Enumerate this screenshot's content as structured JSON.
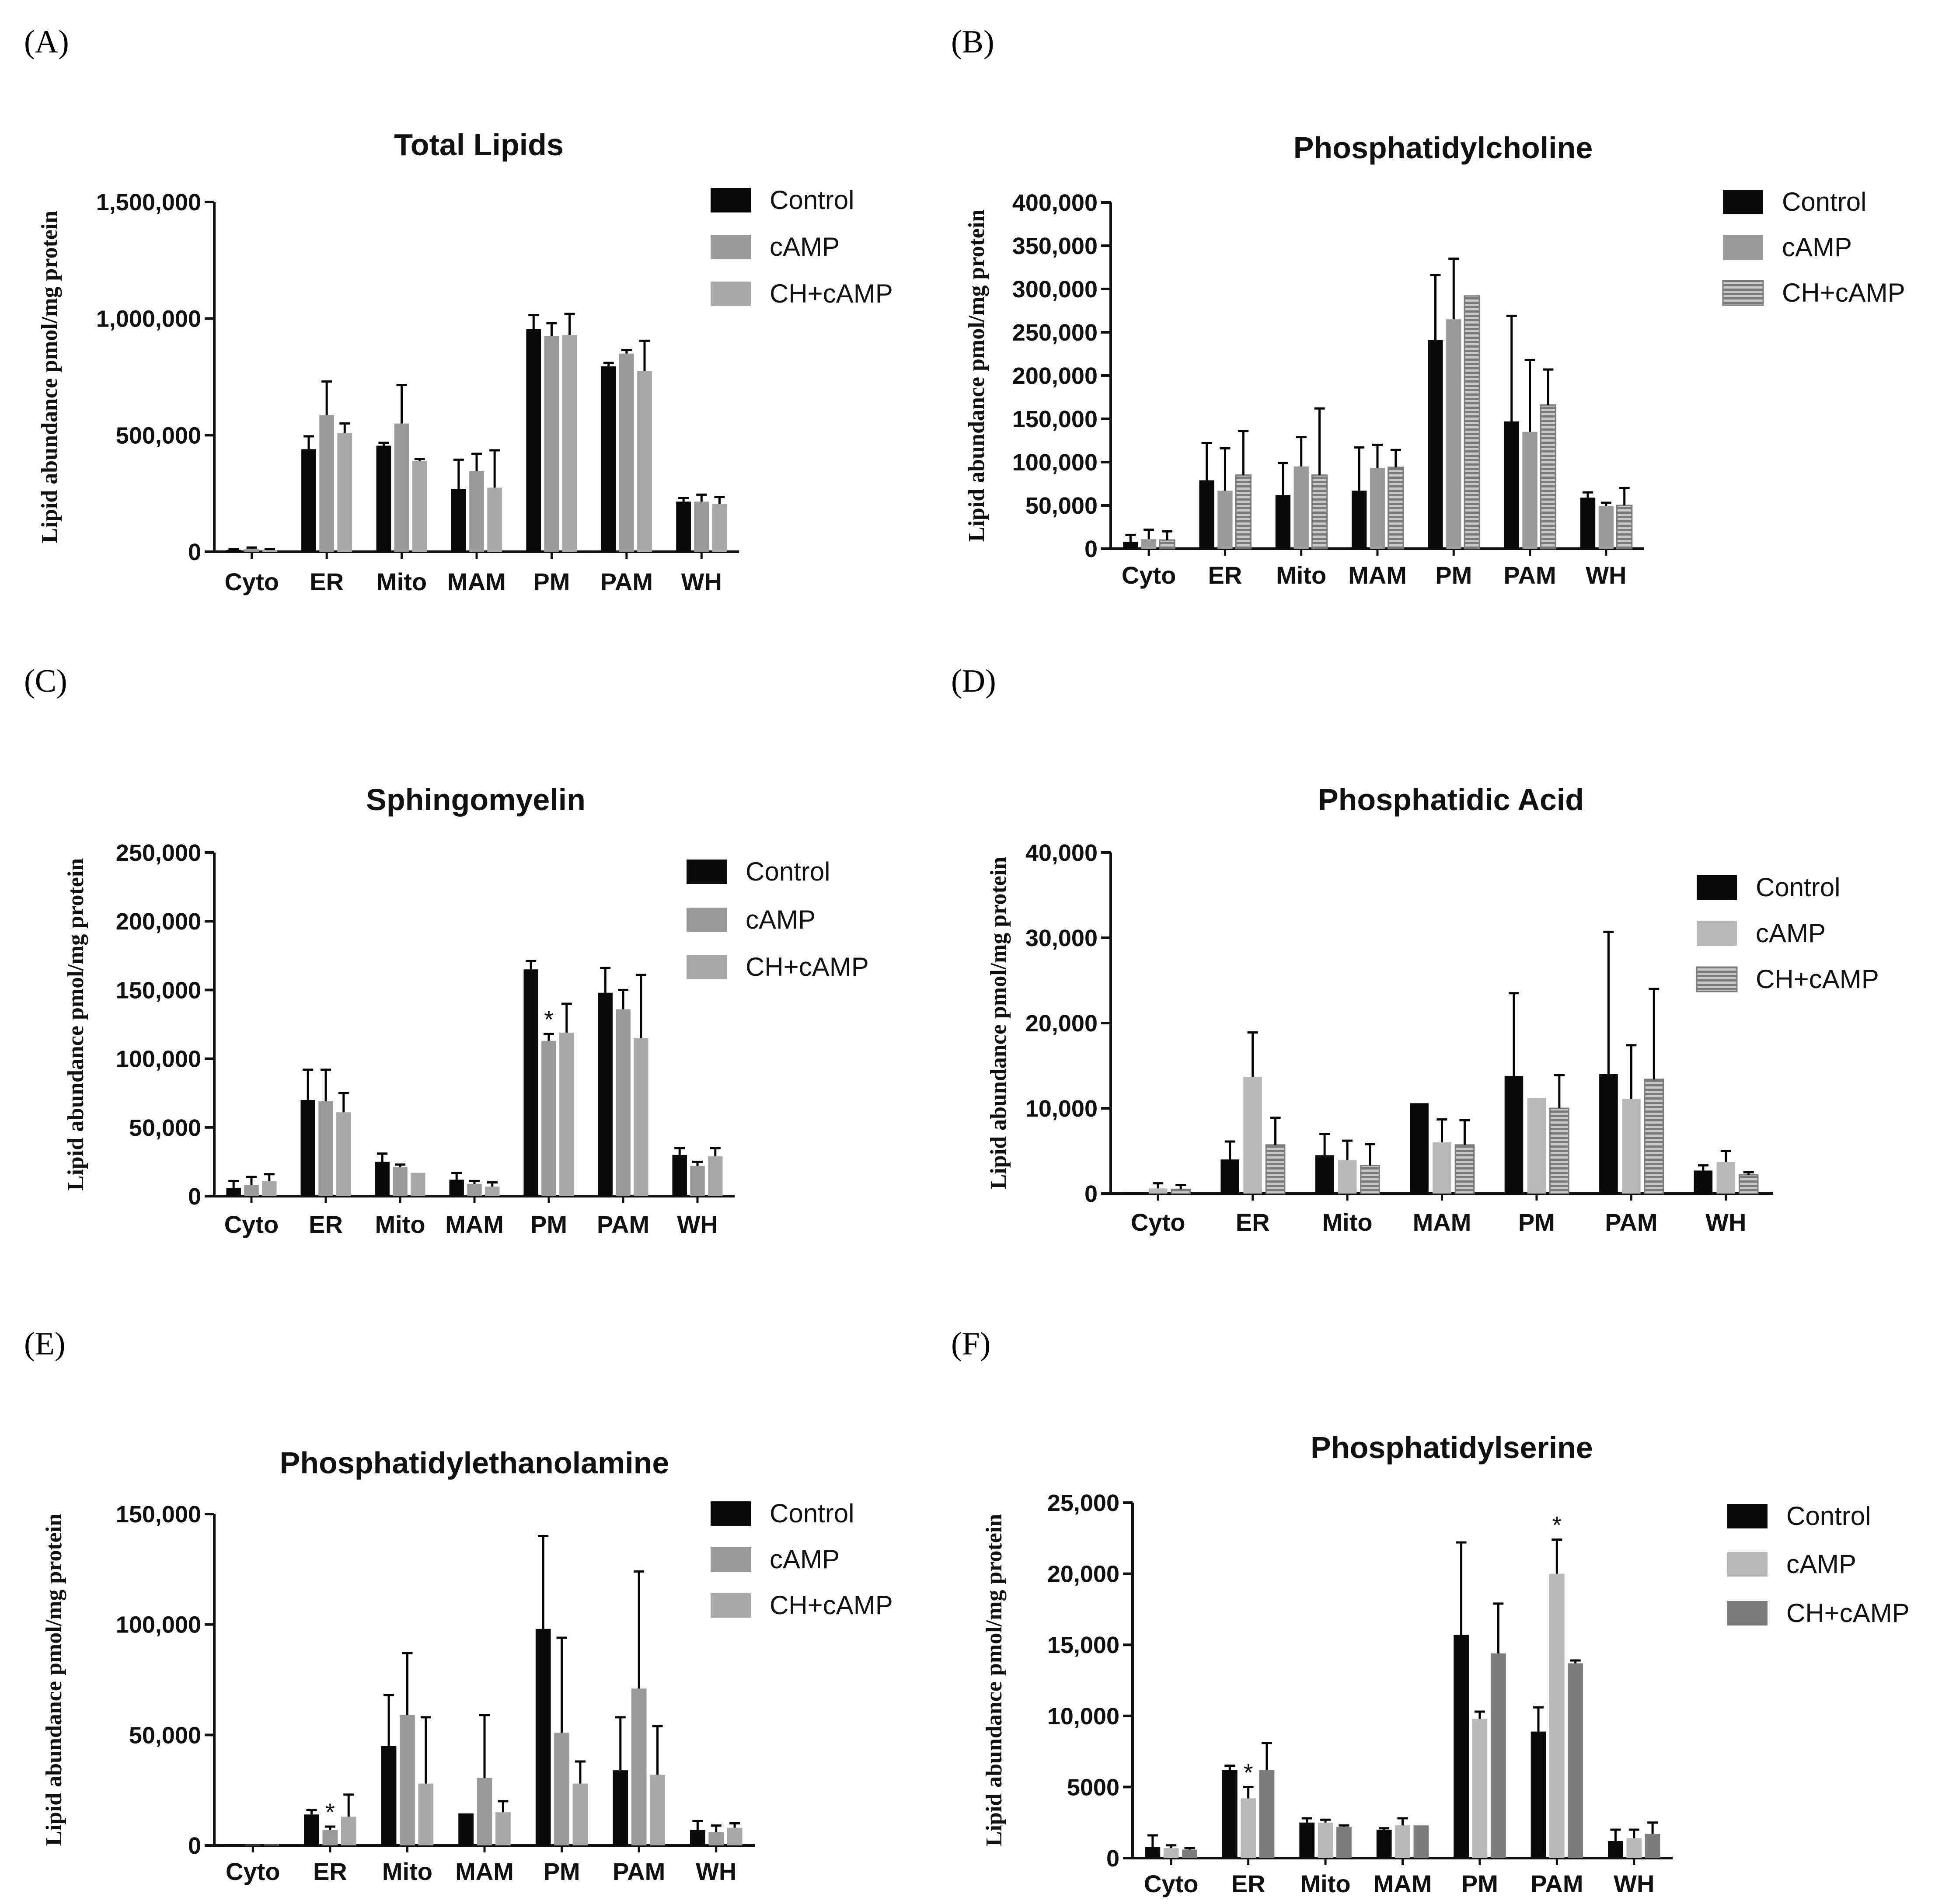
{
  "figure": {
    "colors": {
      "control": "#0a0a0a",
      "camp": "#9a9a9a",
      "chcamp": "#a9a9a9",
      "axis": "#111111",
      "camp_light": "#b8b8b8",
      "chcamp_dark": "#7d7d7d"
    }
  },
  "chart_data": [
    {
      "panel": "(A)",
      "type": "bar",
      "title": "Total Lipids",
      "ylabel": "Lipid abundance pmol/mg protein",
      "xlabel": "",
      "ylim": [
        0,
        1500000
      ],
      "yticks": [
        0,
        500000,
        1000000,
        1500000
      ],
      "ytick_labels": [
        "0",
        "500,000",
        "1,000,000",
        "1,500,000"
      ],
      "categories": [
        "Cyto",
        "ER",
        "Mito",
        "MAM",
        "PM",
        "PAM",
        "WH"
      ],
      "legend": [
        "Control",
        "cAMP",
        "CH+cAMP"
      ],
      "series": [
        {
          "name": "Control",
          "style": "solid",
          "values": [
            8000,
            440000,
            455000,
            270000,
            955000,
            795000,
            215000
          ],
          "errors": [
            4000,
            55000,
            12000,
            125000,
            60000,
            15000,
            15000
          ]
        },
        {
          "name": "cAMP",
          "style": "solid",
          "values": [
            12000,
            585000,
            550000,
            345000,
            925000,
            850000,
            215000
          ],
          "errors": [
            6000,
            145000,
            165000,
            75000,
            55000,
            15000,
            30000
          ]
        },
        {
          "name": "CH+cAMP",
          "style": "solid",
          "values": [
            8000,
            510000,
            390000,
            275000,
            930000,
            775000,
            205000
          ],
          "errors": [
            4000,
            40000,
            8000,
            160000,
            90000,
            130000,
            30000
          ]
        }
      ],
      "annotations": []
    },
    {
      "panel": "(B)",
      "type": "bar",
      "title": "Phosphatidylcholine",
      "ylabel": "Lipid abundance pmol/mg protein",
      "xlabel": "",
      "ylim": [
        0,
        400000
      ],
      "yticks": [
        0,
        50000,
        100000,
        150000,
        200000,
        250000,
        300000,
        350000,
        400000
      ],
      "ytick_labels": [
        "0",
        "50,000",
        "100,000",
        "150,000",
        "200,000",
        "250,000",
        "300,000",
        "350,000",
        "400,000"
      ],
      "categories": [
        "Cyto",
        "ER",
        "Mito",
        "MAM",
        "PM",
        "PAM",
        "WH"
      ],
      "legend": [
        "Control",
        "cAMP",
        "CH+cAMP"
      ],
      "series": [
        {
          "name": "Control",
          "style": "solid",
          "values": [
            8000,
            79000,
            62000,
            67000,
            241000,
            147000,
            59000
          ],
          "errors": [
            8000,
            43000,
            37000,
            50000,
            75000,
            122000,
            6000
          ]
        },
        {
          "name": "cAMP",
          "style": "solid",
          "values": [
            11000,
            67000,
            95000,
            93000,
            265000,
            135000,
            49000
          ],
          "errors": [
            11000,
            49000,
            34000,
            27000,
            70000,
            83000,
            4000
          ]
        },
        {
          "name": "CH+cAMP",
          "style": "striped",
          "values": [
            10000,
            85000,
            85000,
            94000,
            292000,
            166000,
            50000
          ],
          "errors": [
            10000,
            51000,
            77000,
            20000,
            0,
            41000,
            20000
          ]
        }
      ],
      "annotations": []
    },
    {
      "panel": "(C)",
      "type": "bar",
      "title": "Sphingomyelin",
      "ylabel": "Lipid abundance pmol/mg protein",
      "xlabel": "",
      "ylim": [
        0,
        250000
      ],
      "yticks": [
        0,
        50000,
        100000,
        150000,
        200000,
        250000
      ],
      "ytick_labels": [
        "0",
        "50,000",
        "100,000",
        "150,000",
        "200,000",
        "250,000"
      ],
      "categories": [
        "Cyto",
        "ER",
        "Mito",
        "MAM",
        "PM",
        "PAM",
        "WH"
      ],
      "legend": [
        "Control",
        "cAMP",
        "CH+cAMP"
      ],
      "series": [
        {
          "name": "Control",
          "style": "solid",
          "values": [
            6000,
            70000,
            25000,
            12000,
            165000,
            148000,
            30000
          ],
          "errors": [
            5000,
            22000,
            6000,
            5000,
            6000,
            18000,
            5000
          ]
        },
        {
          "name": "cAMP",
          "style": "solid",
          "values": [
            8000,
            69000,
            21000,
            9000,
            113000,
            136000,
            22000
          ],
          "errors": [
            6000,
            23000,
            2000,
            2000,
            5000,
            14000,
            3000
          ]
        },
        {
          "name": "CH+cAMP",
          "style": "solid",
          "values": [
            11000,
            61000,
            17000,
            7000,
            119000,
            115000,
            29000
          ],
          "errors": [
            5000,
            14000,
            0,
            3000,
            21000,
            46000,
            6000
          ]
        }
      ],
      "annotations": [
        {
          "text": "*",
          "category": "PM",
          "series": "cAMP"
        }
      ]
    },
    {
      "panel": "(D)",
      "type": "bar",
      "title": "Phosphatidic Acid",
      "ylabel": "Lipid abundance pmol/mg protein",
      "xlabel": "",
      "ylim": [
        0,
        40000
      ],
      "yticks": [
        0,
        10000,
        20000,
        30000,
        40000
      ],
      "ytick_labels": [
        "0",
        "10,000",
        "20,000",
        "30,000",
        "40,000"
      ],
      "categories": [
        "Cyto",
        "ER",
        "Mito",
        "MAM",
        "PM",
        "PAM",
        "WH"
      ],
      "legend": [
        "Control",
        "cAMP",
        "CH+cAMP"
      ],
      "series": [
        {
          "name": "Control",
          "style": "solid",
          "values": [
            200,
            4000,
            4500,
            10600,
            13800,
            14000,
            2700
          ],
          "errors": [
            0,
            2100,
            2500,
            0,
            9700,
            16700,
            600
          ]
        },
        {
          "name": "cAMP",
          "style": "solid-light",
          "values": [
            600,
            13700,
            3900,
            6000,
            11200,
            11100,
            3700
          ],
          "errors": [
            600,
            5200,
            2300,
            2700,
            0,
            6300,
            1300
          ]
        },
        {
          "name": "CH+cAMP",
          "style": "striped",
          "values": [
            500,
            5700,
            3300,
            5700,
            10000,
            13400,
            2200
          ],
          "errors": [
            500,
            3200,
            2500,
            2900,
            3900,
            10600,
            300
          ]
        }
      ],
      "annotations": []
    },
    {
      "panel": "(E)",
      "type": "bar",
      "title": "Phosphatidylethanolamine",
      "ylabel": "Lipid abundance pmol/mg protein",
      "xlabel": "",
      "ylim": [
        0,
        150000
      ],
      "yticks": [
        0,
        50000,
        100000,
        150000
      ],
      "ytick_labels": [
        "0",
        "50,000",
        "100,000",
        "150,000"
      ],
      "categories": [
        "Cyto",
        "ER",
        "Mito",
        "MAM",
        "PM",
        "PAM",
        "WH"
      ],
      "legend": [
        "Control",
        "cAMP",
        "CH+cAMP"
      ],
      "series": [
        {
          "name": "Control",
          "style": "solid",
          "values": [
            500,
            14000,
            45000,
            14500,
            98000,
            34000,
            7000
          ],
          "errors": [
            0,
            2000,
            23000,
            0,
            42000,
            24000,
            4000
          ]
        },
        {
          "name": "cAMP",
          "style": "solid",
          "values": [
            300,
            7000,
            59000,
            30500,
            51000,
            71000,
            6000
          ],
          "errors": [
            0,
            1500,
            28000,
            28500,
            43000,
            53000,
            3000
          ]
        },
        {
          "name": "CH+cAMP",
          "style": "solid",
          "values": [
            400,
            13000,
            28000,
            15000,
            28000,
            32000,
            8000
          ],
          "errors": [
            0,
            10000,
            30000,
            5000,
            10000,
            22000,
            2000
          ]
        }
      ],
      "annotations": [
        {
          "text": "*",
          "category": "ER",
          "series": "cAMP"
        }
      ]
    },
    {
      "panel": "(F)",
      "type": "bar",
      "title": "Phosphatidylserine",
      "ylabel": "Lipid abundance pmol/mg protein",
      "xlabel": "",
      "ylim": [
        0,
        25000
      ],
      "yticks": [
        0,
        5000,
        10000,
        15000,
        20000,
        25000
      ],
      "ytick_labels": [
        "0",
        "5000",
        "10,000",
        "15,000",
        "20,000",
        "25,000"
      ],
      "categories": [
        "Cyto",
        "ER",
        "Mito",
        "MAM",
        "PM",
        "PAM",
        "WH"
      ],
      "legend": [
        "Control",
        "cAMP",
        "CH+cAMP"
      ],
      "series": [
        {
          "name": "Control",
          "style": "solid",
          "values": [
            800,
            6200,
            2500,
            2000,
            15700,
            8900,
            1200
          ],
          "errors": [
            800,
            300,
            300,
            100,
            6500,
            1700,
            800
          ]
        },
        {
          "name": "cAMP",
          "style": "solid-light",
          "values": [
            700,
            4200,
            2500,
            2300,
            9800,
            20000,
            1400
          ],
          "errors": [
            200,
            800,
            200,
            500,
            500,
            2400,
            600
          ]
        },
        {
          "name": "CH+cAMP",
          "style": "solid-dark",
          "values": [
            600,
            6200,
            2200,
            2300,
            14400,
            13700,
            1700
          ],
          "errors": [
            100,
            1900,
            100,
            0,
            3500,
            200,
            800
          ]
        }
      ],
      "annotations": [
        {
          "text": "*",
          "category": "ER",
          "series": "cAMP"
        },
        {
          "text": "*",
          "category": "PAM",
          "series": "cAMP"
        }
      ]
    }
  ]
}
